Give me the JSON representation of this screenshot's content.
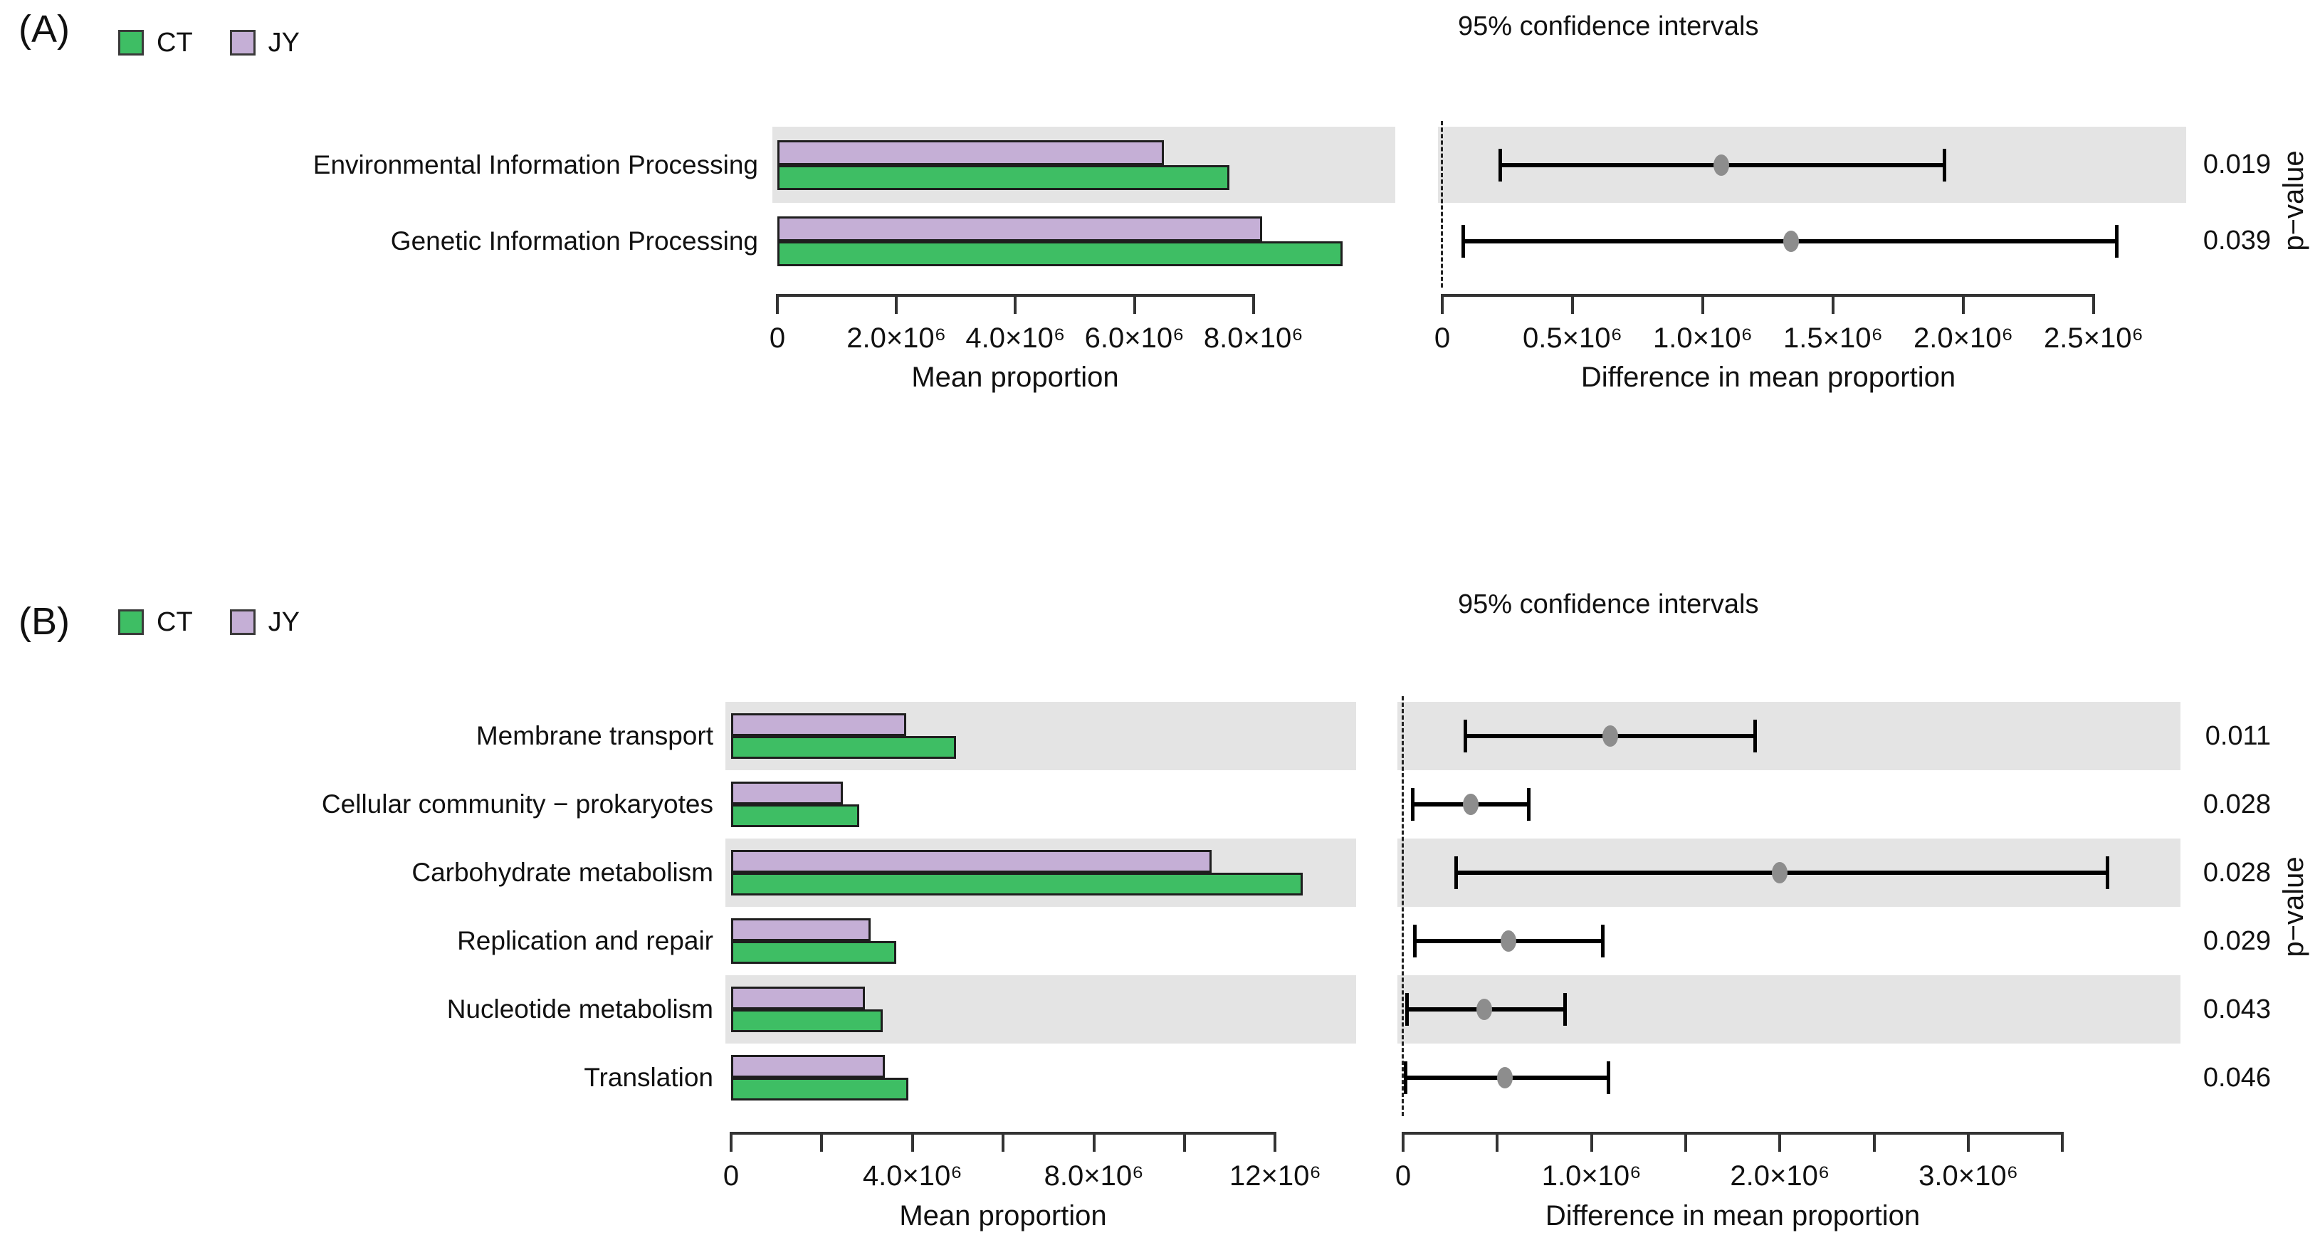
{
  "chart_data": [
    {
      "panel": "A",
      "panel_label": "(A)",
      "type": "bar",
      "orientation": "horizontal",
      "categories": [
        "Environmental Information Processing",
        "Genetic Information Processing"
      ],
      "series": [
        {
          "name": "CT",
          "color": "#3ebe64",
          "values": [
            7600000,
            9500000
          ]
        },
        {
          "name": "JY",
          "color": "#c5afd6",
          "values": [
            6500000,
            8150000
          ]
        }
      ],
      "shaded_rows": [
        0
      ],
      "band_color": "#e4e4e4",
      "mean_axis": {
        "label": "Mean proportion",
        "ticks": [
          0,
          2000000,
          4000000,
          6000000,
          8000000
        ],
        "tick_labels": [
          "0",
          "2.0×10⁶",
          "4.0×10⁶",
          "6.0×10⁶",
          "8.0×10⁶"
        ],
        "max": 10400000
      },
      "difference": {
        "title": "95% confidence intervals",
        "axis_label": "Difference in mean proportion",
        "ticks": [
          0,
          500000,
          1000000,
          1500000,
          2000000,
          2500000
        ],
        "tick_labels": [
          "0",
          "0.5×10⁶",
          "1.0×10⁶",
          "1.5×10⁶",
          "2.0×10⁶",
          "2.5×10⁶"
        ],
        "max": 2860000,
        "intervals": [
          {
            "low": 220000,
            "mean": 1070000,
            "high": 1930000
          },
          {
            "low": 80000,
            "mean": 1340000,
            "high": 2590000
          }
        ],
        "p_values": [
          "0.019",
          "0.039"
        ],
        "p_axis_label": "p−value"
      }
    },
    {
      "panel": "B",
      "panel_label": "(B)",
      "type": "bar",
      "orientation": "horizontal",
      "categories": [
        "Membrane transport",
        "Cellular community − prokaryotes",
        "Carbohydrate metabolism",
        "Replication and repair",
        "Nucleotide metabolism",
        "Translation"
      ],
      "series": [
        {
          "name": "CT",
          "color": "#3ebe64",
          "values": [
            4960000,
            2830000,
            12600000,
            3640000,
            3340000,
            3910000
          ]
        },
        {
          "name": "JY",
          "color": "#c5afd6",
          "values": [
            3860000,
            2460000,
            10600000,
            3080000,
            2950000,
            3390000
          ]
        }
      ],
      "shaded_rows": [
        0,
        2,
        4
      ],
      "band_color": "#e4e4e4",
      "mean_axis": {
        "label": "Mean proportion",
        "ticks": [
          0,
          2000000,
          4000000,
          6000000,
          8000000,
          10000000,
          12000000
        ],
        "tick_labels": [
          "0",
          "",
          "4.0×10⁶",
          "",
          "8.0×10⁶",
          "",
          "12×10⁶"
        ],
        "max": 13800000
      },
      "difference": {
        "title": "95% confidence intervals",
        "axis_label": "Difference in mean proportion",
        "ticks": [
          0,
          500000,
          1000000,
          1500000,
          2000000,
          2500000,
          3000000,
          3500000
        ],
        "tick_labels": [
          "0",
          "",
          "1.0×10⁶",
          "",
          "2.0×10⁶",
          "",
          "3.0×10⁶",
          ""
        ],
        "max": 4130000,
        "intervals": [
          {
            "low": 330000,
            "mean": 1100000,
            "high": 1870000
          },
          {
            "low": 50000,
            "mean": 360000,
            "high": 670000
          },
          {
            "low": 280000,
            "mean": 2000000,
            "high": 3740000
          },
          {
            "low": 60000,
            "mean": 560000,
            "high": 1060000
          },
          {
            "low": 20000,
            "mean": 430000,
            "high": 860000
          },
          {
            "low": 10000,
            "mean": 540000,
            "high": 1090000
          }
        ],
        "p_values": [
          "0.011",
          "0.028",
          "0.028",
          "0.029",
          "0.043",
          "0.046"
        ],
        "p_axis_label": "p−value"
      }
    }
  ]
}
